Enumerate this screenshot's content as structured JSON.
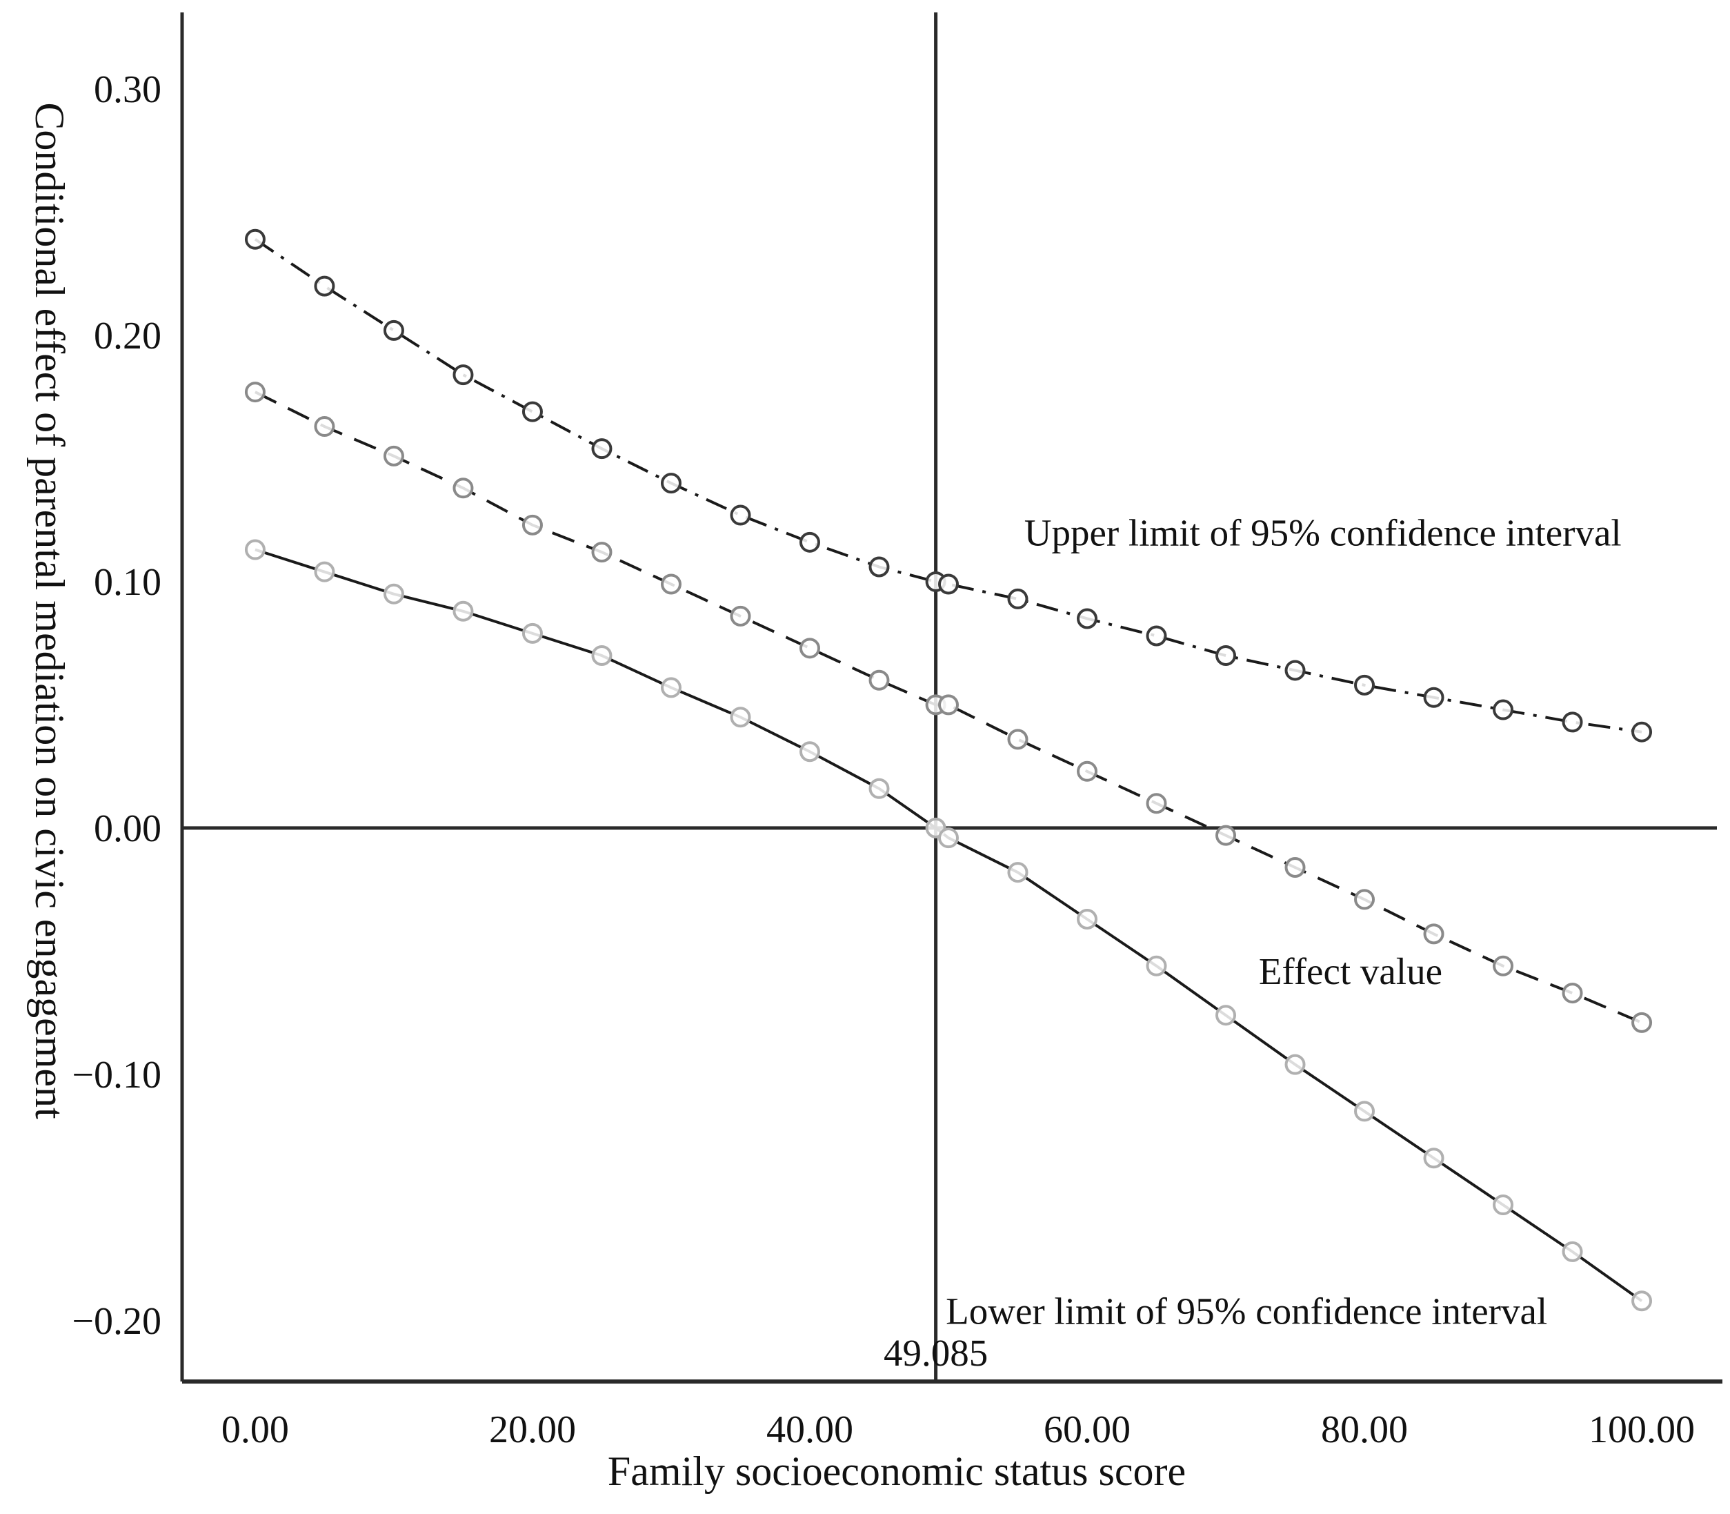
{
  "figure": {
    "background": "#ffffff",
    "line_color": "#1a1a1a",
    "axis_color": "#2a2a2a"
  },
  "chart_data": {
    "type": "line",
    "title": "",
    "xlabel": "Family socioeconomic status score",
    "ylabel": "Conditional effect of parental mediation on civic engagement",
    "xlim": [
      -5.27,
      105.42
    ],
    "ylim": [
      -0.2247,
      0.3311
    ],
    "grid": false,
    "legend_position": "none",
    "x_ticks": [
      {
        "value": 0,
        "label": "0.00"
      },
      {
        "value": 20,
        "label": "20.00"
      },
      {
        "value": 40,
        "label": "40.00"
      },
      {
        "value": 60,
        "label": "60.00"
      },
      {
        "value": 80,
        "label": "80.00"
      },
      {
        "value": 100,
        "label": "100.00"
      }
    ],
    "y_ticks": [
      {
        "value": 0.3,
        "label": "0.30"
      },
      {
        "value": 0.2,
        "label": "0.20"
      },
      {
        "value": 0.1,
        "label": "0.10"
      },
      {
        "value": 0.0,
        "label": "0.00"
      },
      {
        "value": -0.1,
        "label": "−0.10"
      },
      {
        "value": -0.2,
        "label": "−0.20"
      }
    ],
    "x": [
      0,
      5,
      10,
      15,
      20,
      25,
      30,
      35,
      40,
      45,
      49.085,
      50,
      55,
      60,
      65,
      70,
      75,
      80,
      85,
      90,
      95,
      100
    ],
    "series": [
      {
        "name": "Upper limit of 95% confidence interval",
        "line_style": "dashdot",
        "marker": "circle",
        "marker_color": "#3a3a3a",
        "values": [
          0.239,
          0.22,
          0.202,
          0.184,
          0.169,
          0.154,
          0.14,
          0.127,
          0.116,
          0.106,
          0.1,
          0.099,
          0.093,
          0.085,
          0.078,
          0.07,
          0.064,
          0.058,
          0.053,
          0.048,
          0.043,
          0.039
        ]
      },
      {
        "name": "Effect value",
        "line_style": "dashed",
        "marker": "circle",
        "marker_color": "#8a8a8a",
        "values": [
          0.177,
          0.163,
          0.151,
          0.138,
          0.123,
          0.112,
          0.099,
          0.086,
          0.073,
          0.06,
          0.05,
          0.05,
          0.036,
          0.023,
          0.01,
          -0.003,
          -0.016,
          -0.029,
          -0.043,
          -0.056,
          -0.067,
          -0.079
        ]
      },
      {
        "name": "Lower limit of 95% confidence interval",
        "line_style": "solid",
        "marker": "circle",
        "marker_color": "#b0b0b0",
        "values": [
          0.113,
          0.104,
          0.095,
          0.088,
          0.079,
          0.07,
          0.057,
          0.045,
          0.031,
          0.016,
          0.0,
          -0.004,
          -0.018,
          -0.037,
          -0.056,
          -0.076,
          -0.096,
          -0.115,
          -0.134,
          -0.153,
          -0.172,
          -0.192
        ]
      }
    ],
    "reference_lines": {
      "horizontal_y": 0.0,
      "vertical_x": 49.085
    },
    "annotations": [
      {
        "id": "upper-ci-label",
        "text": "Upper limit of 95% confidence interval",
        "x": 77.0,
        "y": 0.12
      },
      {
        "id": "effect-label",
        "text": "Effect value",
        "x": 79.0,
        "y": -0.058
      },
      {
        "id": "lower-ci-label",
        "text": "Lower limit of 95% confidence interval",
        "x": 71.5,
        "y": -0.196
      },
      {
        "id": "jn-point-label",
        "text": "49.085",
        "x": 49.085,
        "y": -0.213
      }
    ]
  }
}
